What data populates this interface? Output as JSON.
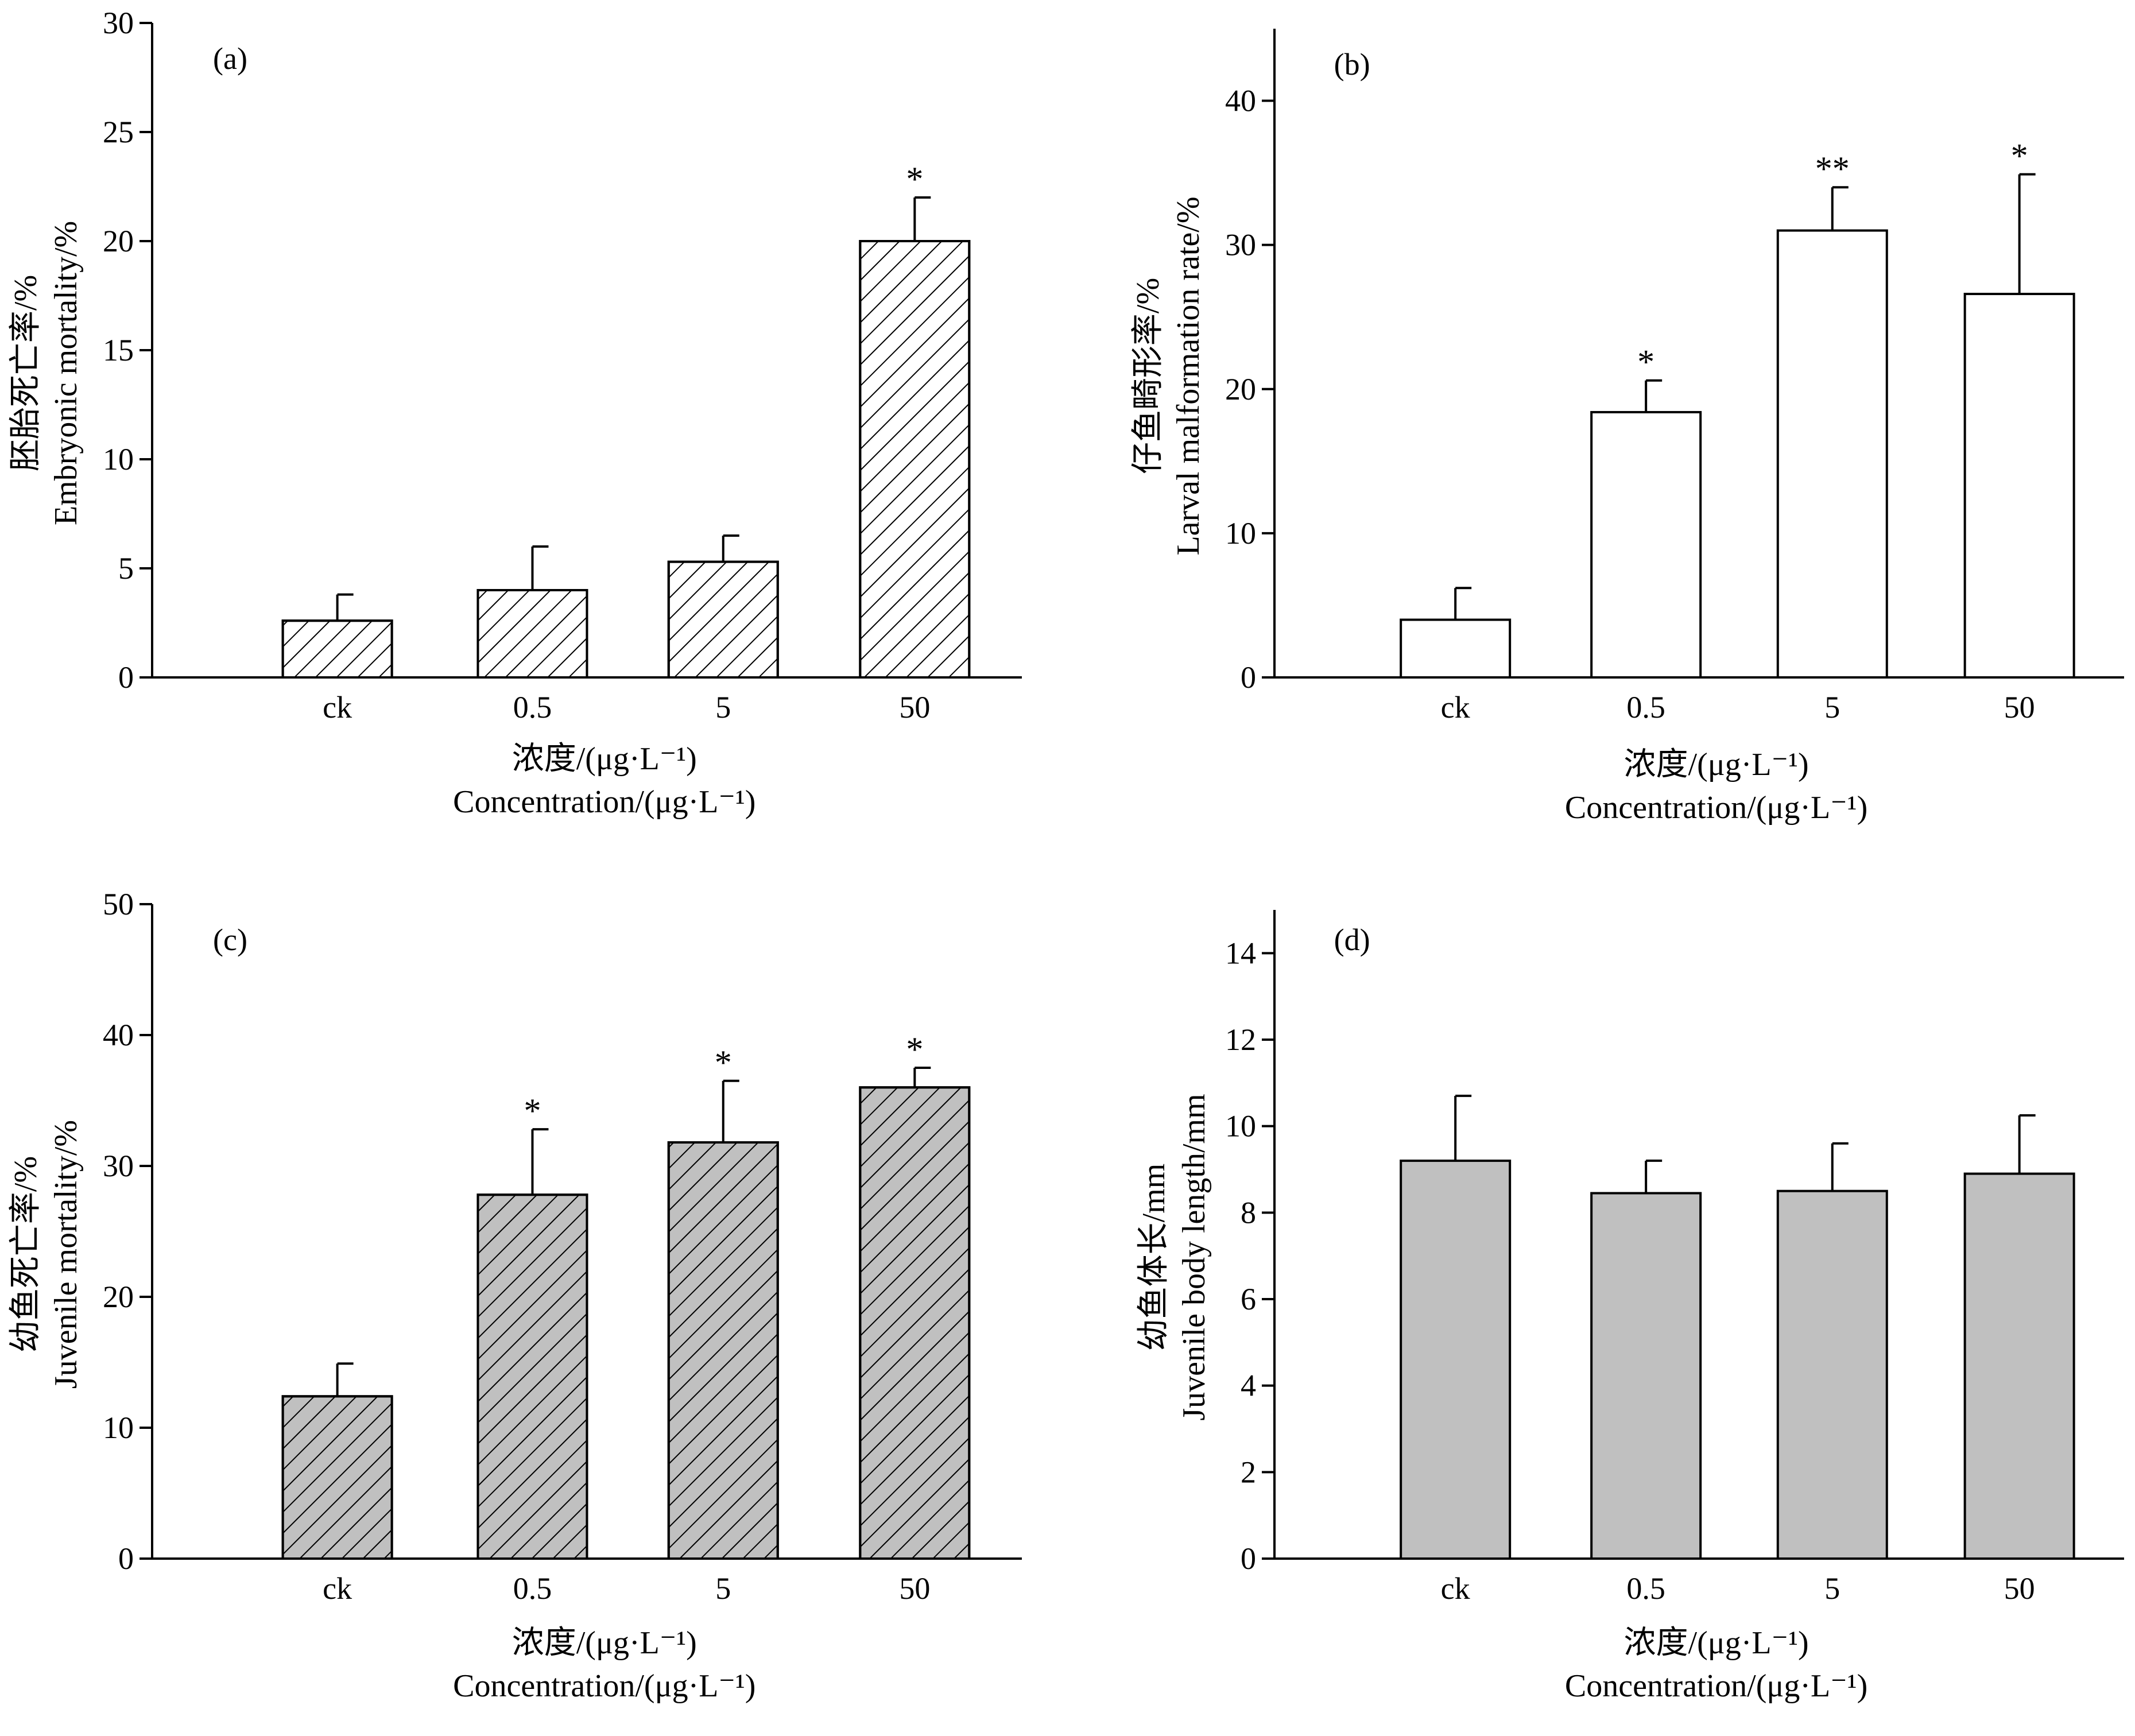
{
  "figure": {
    "panels": [
      {
        "panel_label": "(a)",
        "ylabel_zh": "胚胎死亡率/%",
        "ylabel_en": "Embryonic mortality/%",
        "xlabel_zh": "浓度/(μg·L⁻¹)",
        "xlabel_en": "Concentration/(μg·L⁻¹)",
        "bar_fill": "#ffffff",
        "hatch": true
      },
      {
        "panel_label": "(b)",
        "ylabel_zh": "仔鱼畸形率/%",
        "ylabel_en": "Larval malformation rate/%",
        "xlabel_zh": "浓度/(μg·L⁻¹)",
        "xlabel_en": "Concentration/(μg·L⁻¹)",
        "bar_fill": "#ffffff",
        "hatch": false
      },
      {
        "panel_label": "(c)",
        "ylabel_zh": "幼鱼死亡率/%",
        "ylabel_en": "Juvenile mortality/%",
        "xlabel_zh": "浓度/(μg·L⁻¹)",
        "xlabel_en": "Concentration/(μg·L⁻¹)",
        "bar_fill": "#c0c0c0",
        "hatch": true
      },
      {
        "panel_label": "(d)",
        "ylabel_zh": "幼鱼体长/mm",
        "ylabel_en": "Juvenile body length/mm",
        "xlabel_zh": "浓度/(μg·L⁻¹)",
        "xlabel_en": "Concentration/(μg·L⁻¹)",
        "bar_fill": "#c0c0c0",
        "hatch": false
      }
    ]
  },
  "chart_data": [
    {
      "type": "bar",
      "categories": [
        "ck",
        "0.5",
        "5",
        "50"
      ],
      "values": [
        2.6,
        4.0,
        5.3,
        20.0
      ],
      "errors": [
        1.2,
        2.0,
        1.2,
        2.0
      ],
      "significance": [
        "",
        "",
        "",
        "*"
      ],
      "ylim": [
        0,
        30
      ],
      "yticks": [
        0,
        5,
        10,
        15,
        20,
        25,
        30
      ],
      "grid": false
    },
    {
      "type": "bar",
      "categories": [
        "ck",
        "0.5",
        "5",
        "50"
      ],
      "values": [
        4.0,
        18.4,
        31.0,
        26.6
      ],
      "errors": [
        2.2,
        2.2,
        3.0,
        8.3
      ],
      "significance": [
        "",
        "*",
        "**",
        "*"
      ],
      "ylim": [
        0,
        45
      ],
      "yticks": [
        0,
        10,
        20,
        30,
        40
      ],
      "grid": false
    },
    {
      "type": "bar",
      "categories": [
        "ck",
        "0.5",
        "5",
        "50"
      ],
      "values": [
        12.4,
        27.8,
        31.8,
        36.0
      ],
      "errors": [
        2.5,
        5.0,
        4.7,
        1.5
      ],
      "significance": [
        "",
        "*",
        "*",
        "*"
      ],
      "ylim": [
        0,
        50
      ],
      "yticks": [
        0,
        10,
        20,
        30,
        40,
        50
      ],
      "grid": false
    },
    {
      "type": "bar",
      "categories": [
        "ck",
        "0.5",
        "5",
        "50"
      ],
      "values": [
        9.2,
        8.45,
        8.5,
        8.9
      ],
      "errors": [
        1.5,
        0.75,
        1.1,
        1.35
      ],
      "significance": [
        "",
        "",
        "",
        ""
      ],
      "ylim": [
        0,
        15
      ],
      "yticks": [
        0,
        2,
        4,
        6,
        8,
        10,
        12,
        14
      ],
      "grid": false
    }
  ]
}
